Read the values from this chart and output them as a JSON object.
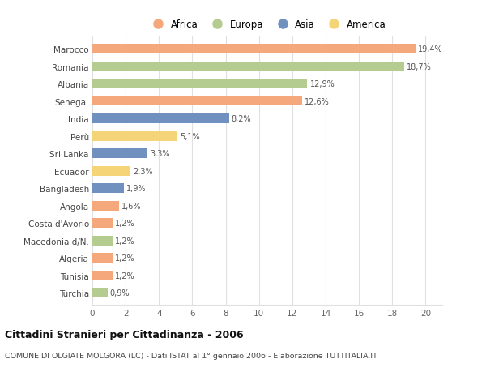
{
  "countries": [
    "Marocco",
    "Romania",
    "Albania",
    "Senegal",
    "India",
    "Perù",
    "Sri Lanka",
    "Ecuador",
    "Bangladesh",
    "Angola",
    "Costa d'Avorio",
    "Macedonia d/N.",
    "Algeria",
    "Tunisia",
    "Turchia"
  ],
  "values": [
    19.4,
    18.7,
    12.9,
    12.6,
    8.2,
    5.1,
    3.3,
    2.3,
    1.9,
    1.6,
    1.2,
    1.2,
    1.2,
    1.2,
    0.9
  ],
  "labels": [
    "19,4%",
    "18,7%",
    "12,9%",
    "12,6%",
    "8,2%",
    "5,1%",
    "3,3%",
    "2,3%",
    "1,9%",
    "1,6%",
    "1,2%",
    "1,2%",
    "1,2%",
    "1,2%",
    "0,9%"
  ],
  "continents": [
    "Africa",
    "Europa",
    "Europa",
    "Africa",
    "Asia",
    "America",
    "Asia",
    "America",
    "Asia",
    "Africa",
    "Africa",
    "Europa",
    "Africa",
    "Africa",
    "Europa"
  ],
  "colors": {
    "Africa": "#F4A87C",
    "Europa": "#B5CC90",
    "Asia": "#7090C0",
    "America": "#F5D478"
  },
  "legend_order": [
    "Africa",
    "Europa",
    "Asia",
    "America"
  ],
  "title": "Cittadini Stranieri per Cittadinanza - 2006",
  "subtitle": "COMUNE DI OLGIATE MOLGORA (LC) - Dati ISTAT al 1° gennaio 2006 - Elaborazione TUTTITALIA.IT",
  "xlim": [
    0,
    21
  ],
  "xticks": [
    0,
    2,
    4,
    6,
    8,
    10,
    12,
    14,
    16,
    18,
    20
  ],
  "bg_color": "#ffffff",
  "grid_color": "#e0e0e0"
}
